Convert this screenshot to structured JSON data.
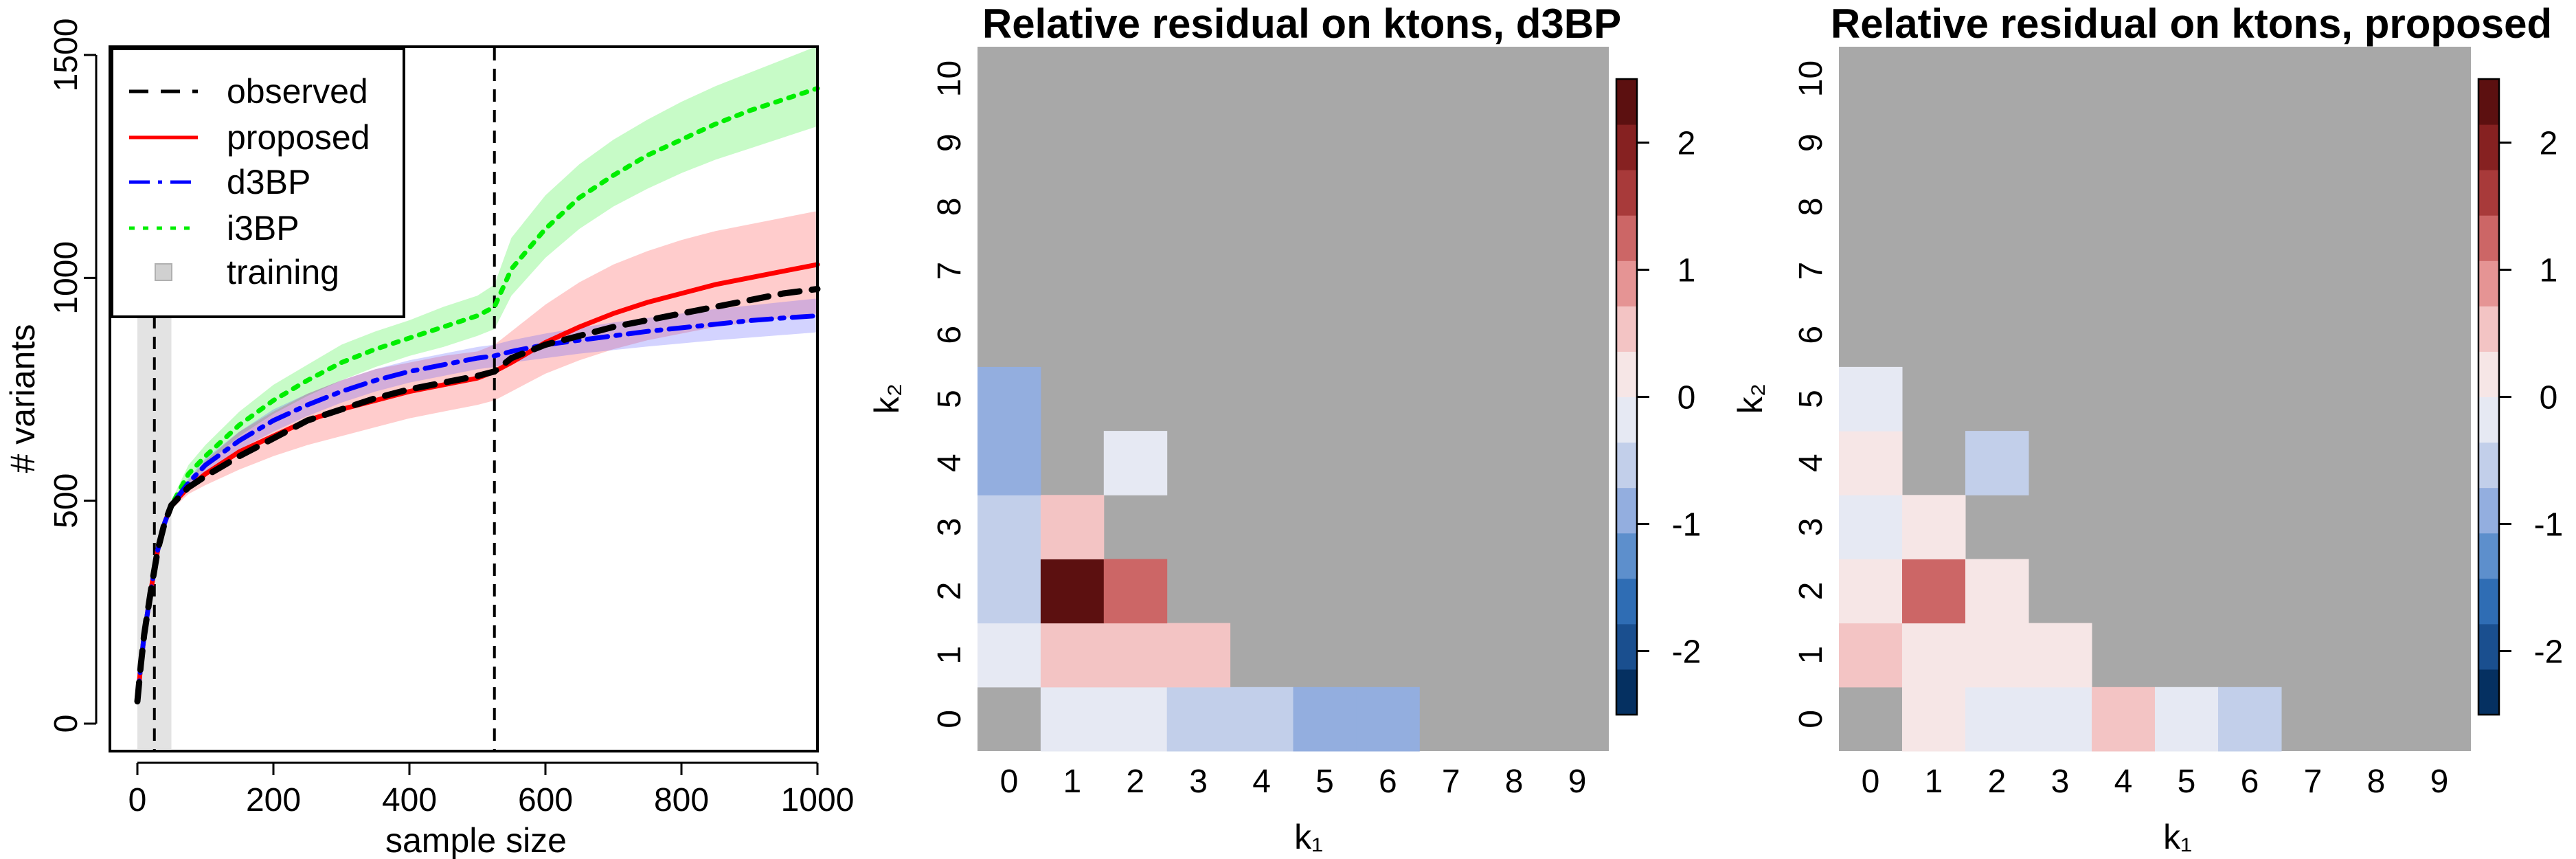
{
  "chart_data": [
    {
      "type": "line",
      "xlabel": "sample size",
      "ylabel": "# variants",
      "xlim": [
        0,
        1000
      ],
      "ylim": [
        0,
        1500
      ],
      "x_ticks": [
        0,
        200,
        400,
        600,
        800,
        1000
      ],
      "y_ticks": [
        0,
        500,
        1000,
        1500
      ],
      "grid": false,
      "legend": {
        "placement": "top-left",
        "entries": [
          {
            "label": "observed",
            "color": "#000000",
            "style": "dashed"
          },
          {
            "label": "proposed",
            "color": "#ff0000",
            "style": "solid"
          },
          {
            "label": "d3BP",
            "color": "#0000ff",
            "style": "dashdot"
          },
          {
            "label": "i3BP",
            "color": "#00ee00",
            "style": "dotted"
          },
          {
            "label": "training",
            "color": "#d0d0d0",
            "style": "box"
          }
        ]
      },
      "training_region": [
        0,
        50
      ],
      "vertical_lines": [
        25,
        525
      ],
      "x": [
        0,
        5,
        10,
        20,
        30,
        40,
        50,
        75,
        100,
        150,
        200,
        250,
        300,
        350,
        400,
        450,
        500,
        525,
        550,
        600,
        650,
        700,
        750,
        800,
        850,
        900,
        950,
        1000
      ],
      "series": [
        {
          "name": "i3BP",
          "color": "#00ee00",
          "style": "dotted",
          "values": [
            50,
            130,
            200,
            300,
            390,
            450,
            490,
            560,
            600,
            670,
            725,
            770,
            810,
            840,
            865,
            890,
            915,
            935,
            1020,
            1110,
            1180,
            1230,
            1275,
            1310,
            1345,
            1375,
            1400,
            1425
          ],
          "lower": [
            50,
            125,
            190,
            290,
            380,
            440,
            480,
            540,
            580,
            645,
            695,
            735,
            770,
            800,
            825,
            845,
            870,
            885,
            960,
            1045,
            1110,
            1160,
            1200,
            1235,
            1265,
            1290,
            1315,
            1340
          ],
          "upper": [
            50,
            135,
            210,
            310,
            400,
            460,
            500,
            580,
            625,
            700,
            760,
            805,
            850,
            880,
            905,
            935,
            960,
            985,
            1090,
            1185,
            1255,
            1310,
            1355,
            1395,
            1430,
            1460,
            1490,
            1520
          ]
        },
        {
          "name": "proposed",
          "color": "#ff0000",
          "style": "solid",
          "values": [
            50,
            130,
            200,
            300,
            390,
            450,
            490,
            530,
            560,
            610,
            645,
            680,
            705,
            725,
            745,
            760,
            775,
            790,
            810,
            855,
            890,
            920,
            945,
            965,
            985,
            1000,
            1015,
            1030
          ],
          "lower": [
            50,
            125,
            190,
            290,
            380,
            440,
            480,
            515,
            535,
            570,
            600,
            625,
            645,
            665,
            685,
            700,
            715,
            725,
            745,
            785,
            815,
            840,
            860,
            875,
            890,
            900,
            910,
            920
          ],
          "upper": [
            50,
            135,
            210,
            310,
            400,
            460,
            500,
            545,
            590,
            655,
            700,
            740,
            770,
            795,
            810,
            825,
            835,
            850,
            880,
            940,
            990,
            1030,
            1060,
            1085,
            1105,
            1120,
            1135,
            1150
          ]
        },
        {
          "name": "d3BP",
          "color": "#0000ff",
          "style": "dashdot",
          "values": [
            50,
            130,
            200,
            300,
            390,
            450,
            490,
            540,
            580,
            635,
            680,
            715,
            745,
            770,
            790,
            805,
            820,
            825,
            835,
            850,
            860,
            870,
            880,
            888,
            896,
            904,
            910,
            915
          ],
          "lower": [
            50,
            125,
            190,
            290,
            380,
            440,
            480,
            530,
            565,
            615,
            655,
            690,
            720,
            745,
            765,
            780,
            795,
            800,
            810,
            820,
            830,
            838,
            846,
            853,
            860,
            866,
            872,
            878
          ],
          "upper": [
            50,
            135,
            210,
            310,
            400,
            460,
            500,
            550,
            595,
            655,
            705,
            740,
            770,
            795,
            815,
            830,
            845,
            850,
            860,
            875,
            888,
            900,
            910,
            920,
            930,
            938,
            946,
            954
          ]
        },
        {
          "name": "observed",
          "color": "#000000",
          "style": "dashed",
          "values": [
            50,
            130,
            200,
            300,
            390,
            450,
            490,
            530,
            555,
            600,
            640,
            680,
            705,
            730,
            750,
            765,
            780,
            790,
            820,
            850,
            870,
            890,
            905,
            920,
            935,
            950,
            965,
            975
          ]
        }
      ]
    },
    {
      "type": "heatmap",
      "title": "Relative residual on ktons, d3BP",
      "xlabel": "k₁",
      "ylabel": "k₂",
      "x_ticks": [
        0,
        1,
        2,
        3,
        4,
        5,
        6,
        7,
        8,
        9
      ],
      "y_ticks": [
        0,
        1,
        2,
        3,
        4,
        5,
        6,
        7,
        8,
        9,
        10
      ],
      "color_range": [
        -2.5,
        2.5
      ],
      "colorbar_ticks": [
        -2,
        -1,
        0,
        1,
        2
      ],
      "na_color": "#a8a8a8",
      "cells": [
        {
          "k1": 1,
          "k2": 0,
          "value": -0.2
        },
        {
          "k1": 2,
          "k2": 0,
          "value": -0.2
        },
        {
          "k1": 3,
          "k2": 0,
          "value": -0.6
        },
        {
          "k1": 4,
          "k2": 0,
          "value": -0.6
        },
        {
          "k1": 5,
          "k2": 0,
          "value": -0.9
        },
        {
          "k1": 6,
          "k2": 0,
          "value": -0.9
        },
        {
          "k1": 0,
          "k2": 1,
          "value": -0.2
        },
        {
          "k1": 1,
          "k2": 1,
          "value": 0.6
        },
        {
          "k1": 2,
          "k2": 1,
          "value": 0.6
        },
        {
          "k1": 3,
          "k2": 1,
          "value": 0.6
        },
        {
          "k1": 0,
          "k2": 2,
          "value": -0.6
        },
        {
          "k1": 1,
          "k2": 2,
          "value": 2.3
        },
        {
          "k1": 2,
          "k2": 2,
          "value": 1.4
        },
        {
          "k1": 0,
          "k2": 3,
          "value": -0.6
        },
        {
          "k1": 1,
          "k2": 3,
          "value": 0.6
        },
        {
          "k1": 0,
          "k2": 4,
          "value": -0.9
        },
        {
          "k1": 2,
          "k2": 4,
          "value": -0.2
        },
        {
          "k1": 0,
          "k2": 5,
          "value": -0.9
        }
      ]
    },
    {
      "type": "heatmap",
      "title": "Relative residual on ktons, proposed",
      "xlabel": "k₁",
      "ylabel": "k₂",
      "x_ticks": [
        0,
        1,
        2,
        3,
        4,
        5,
        6,
        7,
        8,
        9
      ],
      "y_ticks": [
        0,
        1,
        2,
        3,
        4,
        5,
        6,
        7,
        8,
        9,
        10
      ],
      "color_range": [
        -2.5,
        2.5
      ],
      "colorbar_ticks": [
        -2,
        -1,
        0,
        1,
        2
      ],
      "na_color": "#a8a8a8",
      "cells": [
        {
          "k1": 1,
          "k2": 0,
          "value": 0.2
        },
        {
          "k1": 2,
          "k2": 0,
          "value": -0.2
        },
        {
          "k1": 3,
          "k2": 0,
          "value": -0.2
        },
        {
          "k1": 4,
          "k2": 0,
          "value": 0.6
        },
        {
          "k1": 5,
          "k2": 0,
          "value": -0.2
        },
        {
          "k1": 6,
          "k2": 0,
          "value": -0.6
        },
        {
          "k1": 0,
          "k2": 1,
          "value": 0.6
        },
        {
          "k1": 1,
          "k2": 1,
          "value": 0.2
        },
        {
          "k1": 2,
          "k2": 1,
          "value": 0.2
        },
        {
          "k1": 3,
          "k2": 1,
          "value": 0.2
        },
        {
          "k1": 0,
          "k2": 2,
          "value": 0.2
        },
        {
          "k1": 1,
          "k2": 2,
          "value": 1.1
        },
        {
          "k1": 2,
          "k2": 2,
          "value": 0.2
        },
        {
          "k1": 0,
          "k2": 3,
          "value": -0.2
        },
        {
          "k1": 1,
          "k2": 3,
          "value": 0.2
        },
        {
          "k1": 0,
          "k2": 4,
          "value": 0.2
        },
        {
          "k1": 2,
          "k2": 4,
          "value": -0.6
        },
        {
          "k1": 0,
          "k2": 5,
          "value": -0.2
        }
      ]
    }
  ],
  "colors": {
    "palette": [
      "#053061",
      "#1a4f8f",
      "#2f6db4",
      "#5d8fcc",
      "#93aedf",
      "#c2cfea",
      "#e6e9f3",
      "#f6e6e6",
      "#f3c4c4",
      "#e59494",
      "#cc6666",
      "#a83a3a",
      "#862121",
      "#5c1010"
    ],
    "na": "#a8a8a8"
  }
}
